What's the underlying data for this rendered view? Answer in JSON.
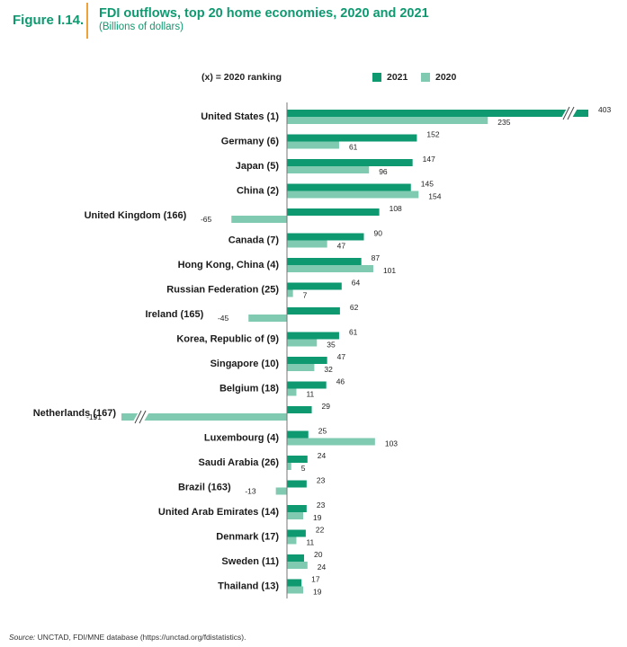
{
  "header": {
    "figure_label": "Figure I.14.",
    "title": "FDI outflows, top 20 home economies, 2020 and 2021",
    "subtitle": "(Billions of dollars)"
  },
  "ranking_note": "(x) = 2020  ranking",
  "source": {
    "label": "Source:",
    "text": "UNCTAD, FDI/MNE database (https://unctad.org/fdistatistics)."
  },
  "colors": {
    "y2021": "#0f9970",
    "y2020": "#7fcab0",
    "axis": "#777777",
    "title": "#0f9970"
  },
  "chart_data": {
    "type": "bar",
    "orientation": "horizontal",
    "categories": [
      "United States (1)",
      "Germany (6)",
      "Japan (5)",
      "China (2)",
      "United Kingdom (166)",
      "Canada (7)",
      "Hong Kong, China (4)",
      "Russian Federation (25)",
      "Ireland (165)",
      "Korea, Republic of (9)",
      "Singapore (10)",
      "Belgium (18)",
      "Netherlands (167)",
      "Luxembourg (4)",
      "Saudi Arabia (26)",
      "Brazil (163)",
      "United Arab Emirates (14)",
      "Denmark (17)",
      "Sweden (11)",
      "Thailand (13)"
    ],
    "series": [
      {
        "name": "2021",
        "values": [
          403,
          152,
          147,
          145,
          108,
          90,
          87,
          64,
          62,
          61,
          47,
          46,
          29,
          25,
          24,
          23,
          23,
          22,
          20,
          17
        ]
      },
      {
        "name": "2020",
        "values": [
          235,
          61,
          96,
          154,
          -65,
          47,
          101,
          7,
          -45,
          35,
          32,
          11,
          -191,
          103,
          5,
          -13,
          19,
          11,
          24,
          19
        ]
      }
    ],
    "legend_position": "top-right",
    "axis_breaks": [
      "United States 2021 bar",
      "Netherlands 2020 bar"
    ]
  }
}
